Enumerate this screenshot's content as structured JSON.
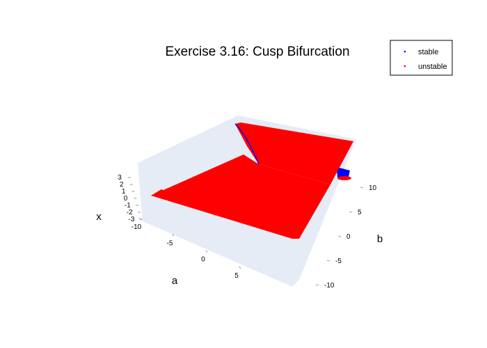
{
  "chart_data": {
    "type": "scatter",
    "title": "Exercise 3.16: Cusp Bifurcation",
    "axes": {
      "a": {
        "label": "a",
        "ticks": [
          "-10",
          "-5",
          "0",
          "5"
        ],
        "range": [
          -10,
          10
        ]
      },
      "b": {
        "label": "b",
        "ticks": [
          "10",
          "5",
          "0",
          "-5",
          "-10"
        ],
        "range": [
          -10,
          10
        ]
      },
      "x": {
        "label": "x",
        "ticks": [
          "3",
          "2",
          "1",
          "0",
          "-1",
          "-2",
          "-3"
        ],
        "range": [
          -3,
          3
        ]
      }
    },
    "series": [
      {
        "name": "stable",
        "color": "#0000ff"
      },
      {
        "name": "unstable",
        "color": "#ff0000"
      }
    ],
    "legend_position": "top-right",
    "background_color": "#e5ecf6"
  }
}
